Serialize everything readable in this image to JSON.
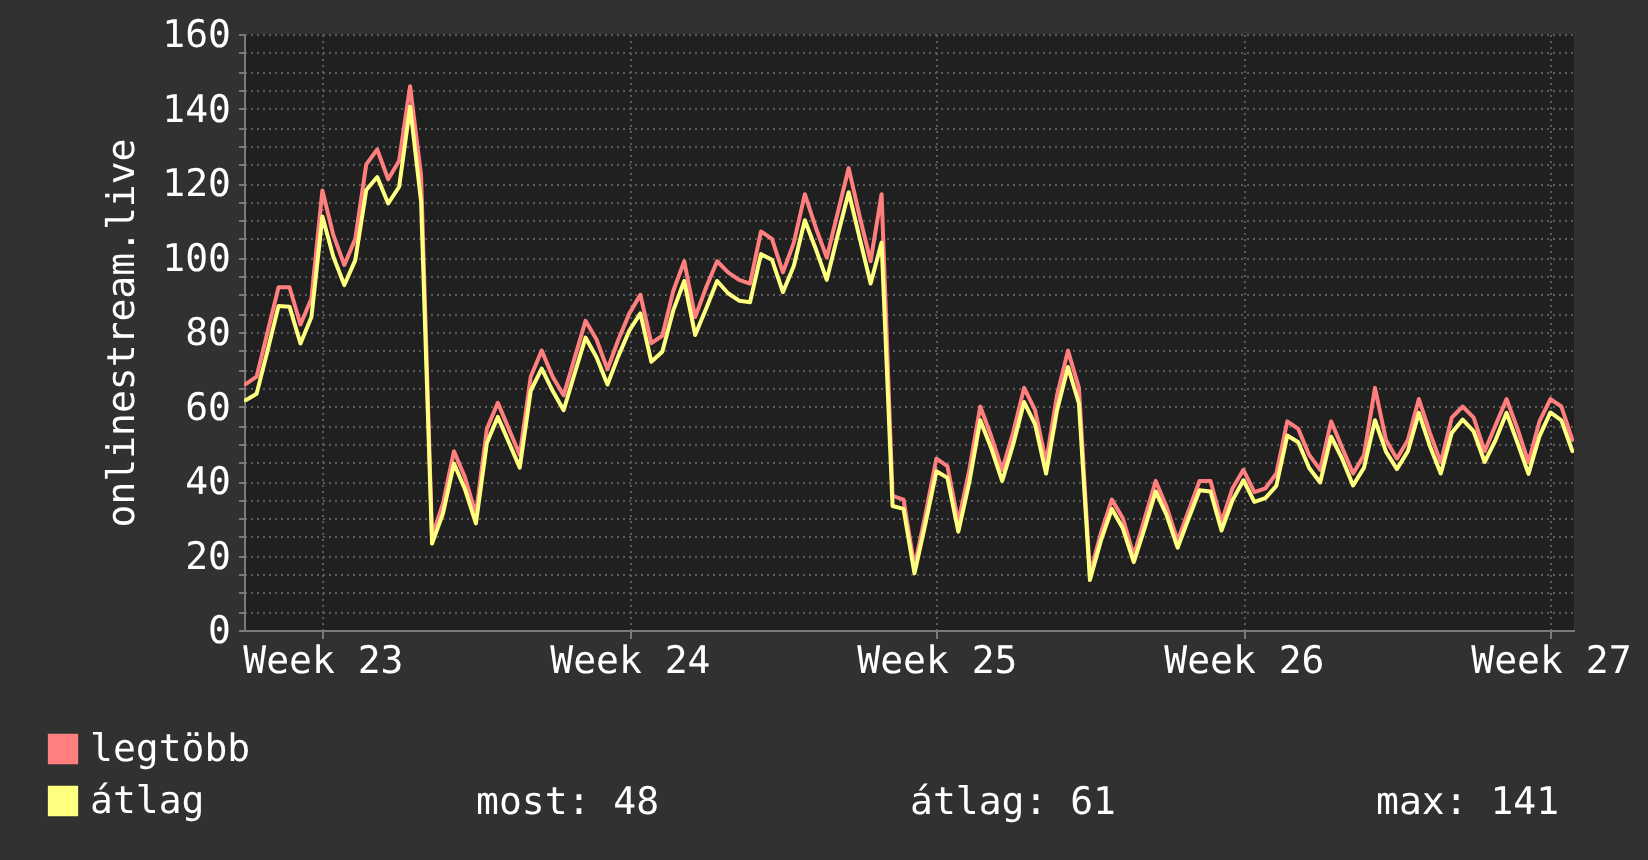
{
  "chart_data": {
    "type": "line",
    "ylabel": "onlinestream.live",
    "categories": [
      null,
      null,
      null,
      null,
      null,
      null,
      null,
      "Week 23",
      null,
      null,
      null,
      null,
      null,
      null,
      null,
      null,
      null,
      null,
      null,
      null,
      null,
      null,
      null,
      null,
      null,
      null,
      null,
      null,
      null,
      null,
      null,
      null,
      null,
      null,
      null,
      "Week 24",
      null,
      null,
      null,
      null,
      null,
      null,
      null,
      null,
      null,
      null,
      null,
      null,
      null,
      null,
      null,
      null,
      null,
      null,
      null,
      null,
      null,
      null,
      null,
      null,
      null,
      null,
      null,
      "Week 25",
      null,
      null,
      null,
      null,
      null,
      null,
      null,
      null,
      null,
      null,
      null,
      null,
      null,
      null,
      null,
      null,
      null,
      null,
      null,
      null,
      null,
      null,
      null,
      null,
      null,
      null,
      null,
      "Week 26",
      null,
      null,
      null,
      null,
      null,
      null,
      null,
      null,
      null,
      null,
      null,
      null,
      null,
      null,
      null,
      null,
      null,
      null,
      null,
      null,
      null,
      null,
      null,
      null,
      null,
      null,
      null,
      "Week 27",
      null,
      null
    ],
    "series": [
      {
        "name": "legtöbb",
        "color": "#ff7f7f",
        "values": [
          66,
          68,
          80,
          92,
          92,
          82,
          89,
          118,
          106,
          98,
          105,
          125,
          129,
          121,
          126,
          146,
          122,
          25,
          34,
          48,
          41,
          31,
          54,
          61,
          54,
          47,
          68,
          75,
          68,
          63,
          73,
          83,
          78,
          70,
          78,
          85,
          90,
          77,
          79,
          91,
          99,
          84,
          92,
          99,
          96,
          94,
          93,
          107,
          105,
          96,
          104,
          117,
          108,
          100,
          112,
          124,
          111,
          99,
          117,
          36,
          35,
          17,
          31,
          46,
          44,
          29,
          43,
          60,
          52,
          43,
          53,
          65,
          59,
          45,
          63,
          75,
          65,
          15,
          26,
          35,
          30,
          20,
          30,
          40,
          33,
          24,
          32,
          40,
          40,
          29,
          38,
          43,
          37,
          38,
          42,
          56,
          54,
          47,
          43,
          56,
          49,
          42,
          47,
          65,
          51,
          46,
          51,
          62,
          53,
          45,
          57,
          60,
          57,
          48,
          55,
          62,
          54,
          45,
          56,
          62,
          60,
          51
        ]
      },
      {
        "name": "átlag",
        "color": "#ffff80",
        "values": [
          61.7,
          63.4,
          75,
          87,
          86.8,
          76.9,
          84,
          111,
          100.2,
          92.6,
          99.3,
          118.1,
          121.6,
          114.5,
          119,
          140.5,
          115,
          23.2,
          31.3,
          44.7,
          37.8,
          28.6,
          50.2,
          57.2,
          50.4,
          43.6,
          64.2,
          70.2,
          64.2,
          59,
          68.8,
          78.5,
          73.2,
          65.9,
          73.6,
          80.4,
          85,
          72,
          74.7,
          85.8,
          93.7,
          79.2,
          86.3,
          93.7,
          90.4,
          88.4,
          88,
          100.9,
          99.4,
          90.7,
          97.8,
          110,
          102.3,
          94,
          106,
          117.5,
          105.2,
          93,
          104,
          33.3,
          32.5,
          15.2,
          28.6,
          42.6,
          40.9,
          26.4,
          39.7,
          56.3,
          48.8,
          40,
          49.8,
          61.2,
          55.2,
          42,
          59,
          70.6,
          60.8,
          13.4,
          24,
          32.5,
          27.3,
          18.2,
          27.4,
          37.2,
          30.8,
          22.1,
          29.9,
          37.5,
          37.2,
          26.7,
          34.8,
          40.2,
          34.4,
          35.4,
          38.7,
          52.2,
          50.4,
          43.5,
          39.6,
          51.9,
          46,
          38.8,
          43.6,
          56.3,
          47.9,
          43.2,
          48,
          58.3,
          49.4,
          42,
          52.9,
          56.5,
          53.3,
          45.1,
          51,
          58.3,
          50.2,
          41.9,
          52,
          58.4,
          56.3,
          48
        ]
      }
    ],
    "ylim": [
      0,
      160
    ],
    "yticks": [
      0,
      {
        "value": 5,
        "label": null
      },
      {
        "value": 10,
        "label": null
      },
      {
        "value": 15,
        "label": null
      },
      20,
      {
        "value": 25,
        "label": null
      },
      {
        "value": 30,
        "label": null
      },
      {
        "value": 35,
        "label": null
      },
      40,
      {
        "value": 45,
        "label": null
      },
      {
        "value": 50,
        "label": null
      },
      {
        "value": 55,
        "label": null
      },
      60,
      {
        "value": 65,
        "label": null
      },
      {
        "value": 70,
        "label": null
      },
      {
        "value": 75,
        "label": null
      },
      80,
      {
        "value": 85,
        "label": null
      },
      {
        "value": 90,
        "label": null
      },
      {
        "value": 95,
        "label": null
      },
      100,
      {
        "value": 105,
        "label": null
      },
      {
        "value": 110,
        "label": null
      },
      {
        "value": 115,
        "label": null
      },
      120,
      {
        "value": 125,
        "label": null
      },
      {
        "value": 130,
        "label": null
      },
      {
        "value": 135,
        "label": null
      },
      140,
      {
        "value": 145,
        "label": null
      },
      {
        "value": 150,
        "label": null
      },
      {
        "value": 155,
        "label": null
      },
      160
    ],
    "grid": true,
    "legend": "bottom left",
    "marker": "none",
    "line_style": "solid",
    "annotations": [
      "most: 48",
      "átlag: 61",
      "max: 141"
    ]
  }
}
